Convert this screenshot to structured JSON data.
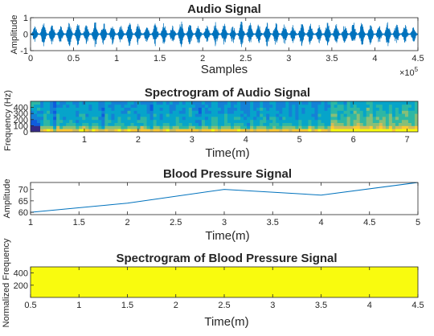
{
  "chart_data": [
    {
      "type": "line",
      "title": "Audio Signal",
      "xlabel": "Samples",
      "ylabel": "Amplitude",
      "x_exponent_label": "×10",
      "x_exponent_power": "5",
      "xlim": [
        0,
        4.5
      ],
      "ylim": [
        -1,
        1
      ],
      "xticks": [
        "0",
        "0.5",
        "1",
        "1.5",
        "2",
        "2.5",
        "3",
        "3.5",
        "4",
        "4.5"
      ],
      "yticks": [
        "-1",
        "0",
        "1"
      ],
      "color": "#0072BD",
      "bursts": {
        "count": 45,
        "start": 0.05,
        "end": 4.45,
        "typical_peak": 0.7,
        "end_peak": 0.5,
        "baseline_noise": 0.05
      }
    },
    {
      "type": "heatmap",
      "title": "Spectrogram of Audio Signal",
      "xlabel": "Time(m)",
      "ylabel": "Frequency (Hz)",
      "xlim": [
        0,
        7.2
      ],
      "ylim": [
        0,
        500
      ],
      "xticks": [
        "1",
        "2",
        "3",
        "4",
        "5",
        "6",
        "7"
      ],
      "yticks": [
        "0",
        "100",
        "200",
        "300",
        "400"
      ],
      "colormap": [
        "#352A87",
        "#0F5CDD",
        "#1481D6",
        "#06A4CA",
        "#2EB7A4",
        "#87BF77",
        "#D1BB59",
        "#FEC832",
        "#F9FB0E"
      ]
    },
    {
      "type": "line",
      "title": "Blood Pressure Signal",
      "xlabel": "Time(m)",
      "ylabel": "Amplitude",
      "xlim": [
        1,
        5
      ],
      "ylim": [
        59,
        73
      ],
      "xticks": [
        "1",
        "1.5",
        "2",
        "2.5",
        "3",
        "3.5",
        "4",
        "4.5",
        "5"
      ],
      "yticks": [
        "60",
        "65",
        "70"
      ],
      "color": "#0072BD",
      "x": [
        1,
        2,
        3,
        4,
        5
      ],
      "y": [
        60,
        64,
        70,
        67.5,
        73
      ]
    },
    {
      "type": "heatmap",
      "title": "Spectrogram of Blood Pressure Signal",
      "xlabel": "Time(m)",
      "ylabel": "Normalized Frequency",
      "xlim": [
        0.5,
        4.5
      ],
      "ylim": [
        0,
        500
      ],
      "xticks": [
        "0.5",
        "1",
        "1.5",
        "2",
        "2.5",
        "3",
        "3.5",
        "4",
        "4.5"
      ],
      "yticks": [
        "200",
        "400"
      ],
      "fill_color": "#F9FB0E"
    }
  ]
}
